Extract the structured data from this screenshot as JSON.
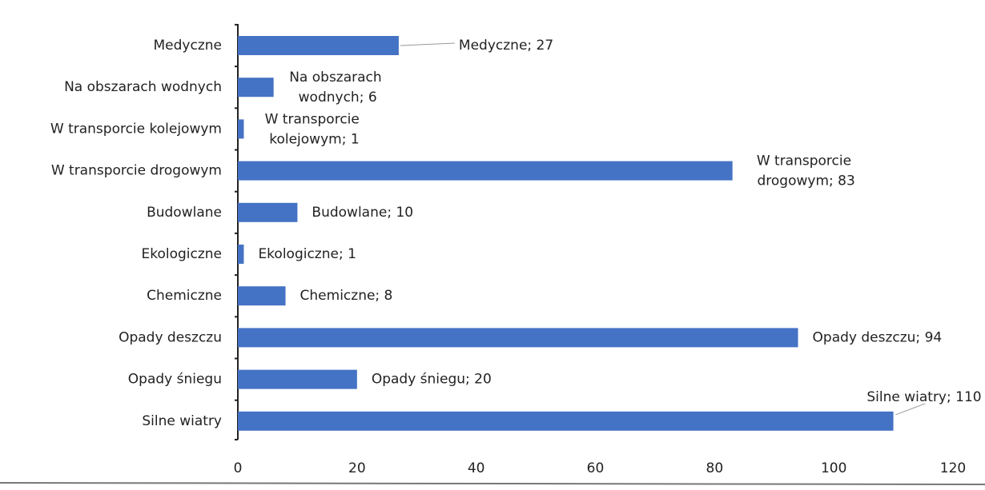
{
  "chart_data": {
    "type": "barh",
    "categories": [
      "Medyczne",
      "Na obszarach wodnych",
      "W transporcie kolejowym",
      "W transporcie drogowym",
      "Budowlane",
      "Ekologiczne",
      "Chemiczne",
      "Opady deszczu",
      "Opady śniegu",
      "Silne wiatry"
    ],
    "values": [
      27,
      6,
      1,
      83,
      10,
      1,
      8,
      94,
      20,
      110
    ],
    "value_labels": [
      "Medyczne; 27",
      "Na obszarach wodnych; 6",
      "W transporcie kolejowym; 1",
      "W transporcie drogowym; 83",
      "Budowlane; 10",
      "Ekologiczne; 1",
      "Chemiczne; 8",
      "Opady deszczu; 94",
      "Opady śniegu; 20",
      "Silne wiatry; 110"
    ],
    "color": "#4472c4",
    "xlim": [
      0,
      120
    ],
    "xticks": [
      0,
      20,
      40,
      60,
      80,
      100,
      120
    ],
    "grid": false
  }
}
